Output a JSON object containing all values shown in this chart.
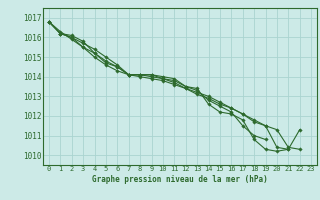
{
  "background_color": "#cceae7",
  "grid_color": "#aad4d0",
  "line_color": "#2d6a2d",
  "marker_color": "#2d6a2d",
  "title": "Graphe pression niveau de la mer (hPa)",
  "ylim": [
    1009.5,
    1017.5
  ],
  "xlim": [
    -0.5,
    23.5
  ],
  "yticks": [
    1010,
    1011,
    1012,
    1013,
    1014,
    1015,
    1016,
    1017
  ],
  "xticks": [
    0,
    1,
    2,
    3,
    4,
    5,
    6,
    7,
    8,
    9,
    10,
    11,
    12,
    13,
    14,
    15,
    16,
    17,
    18,
    19,
    20,
    21,
    22,
    23
  ],
  "series": [
    [
      1016.8,
      1016.2,
      1016.1,
      1015.8,
      1015.2,
      1014.7,
      1014.5,
      1014.1,
      1014.1,
      1014.1,
      1014.0,
      1013.9,
      1013.5,
      1013.4,
      1012.6,
      1012.2,
      1012.1,
      1011.8,
      1010.8,
      1010.3,
      1010.2,
      1010.3,
      null,
      null
    ],
    [
      1016.8,
      1016.2,
      1016.0,
      1015.7,
      1015.4,
      1015.0,
      1014.6,
      1014.1,
      1014.1,
      1014.1,
      1013.9,
      1013.8,
      1013.5,
      1013.3,
      1012.8,
      1012.5,
      1012.2,
      1011.5,
      1011.0,
      1010.8,
      null,
      null,
      null,
      null
    ],
    [
      1016.8,
      1016.3,
      1015.9,
      1015.5,
      1015.0,
      1014.6,
      1014.3,
      1014.1,
      1014.1,
      1014.0,
      1013.9,
      1013.7,
      1013.4,
      1013.2,
      1013.0,
      1012.7,
      1012.4,
      1012.1,
      1011.8,
      1011.5,
      1011.3,
      1010.4,
      1010.3,
      null
    ],
    [
      1016.8,
      1016.2,
      1016.0,
      1015.5,
      1015.2,
      1014.8,
      1014.5,
      1014.1,
      1014.0,
      1013.9,
      1013.8,
      1013.6,
      1013.4,
      1013.1,
      1012.9,
      1012.6,
      1012.4,
      1012.1,
      1011.7,
      1011.5,
      1010.4,
      1010.3,
      1011.3,
      null
    ]
  ]
}
